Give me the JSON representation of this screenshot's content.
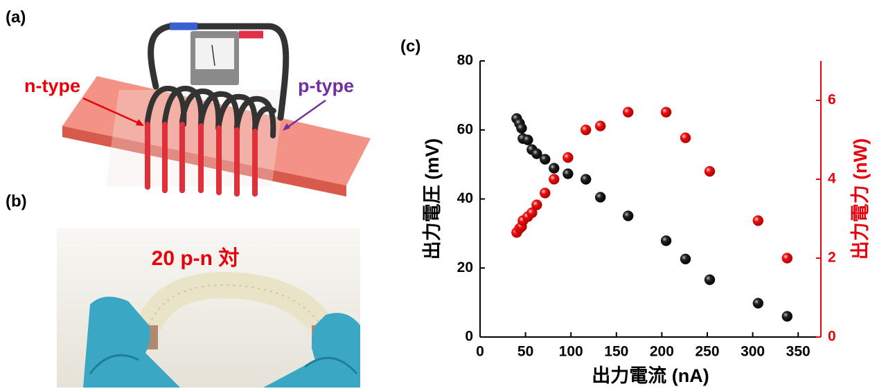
{
  "panels": {
    "a": {
      "label": "(a)",
      "n_label": "n-type",
      "p_label": "p-type"
    },
    "b": {
      "label": "(b)",
      "caption": "20 p-n 対"
    },
    "c": {
      "label": "(c)"
    }
  },
  "chart_data": {
    "type": "scatter",
    "x_label": "出力電流 (nA)",
    "y_label": "出力電圧 (mV)",
    "y2_label": "出力電力 (nW)",
    "x": [
      40.3,
      43.4,
      45.7,
      47.2,
      52.5,
      57.1,
      62.4,
      71.5,
      81.4,
      96.7,
      116.4,
      132.4,
      162.9,
      204.7,
      226,
      252.7,
      305.9,
      337.9
    ],
    "series": [
      {
        "color": "#111111",
        "axis": "y",
        "values": [
          63.3,
          61.9,
          60.5,
          57.5,
          57.1,
          54.3,
          53.1,
          51.5,
          48.9,
          47.3,
          45.7,
          40.5,
          35.1,
          27.9,
          22.6,
          16.6,
          9.8,
          6.0
        ]
      },
      {
        "color": "#e8000b",
        "axis": "y2",
        "values": [
          2.65,
          2.75,
          2.8,
          2.95,
          3.05,
          3.15,
          3.35,
          3.65,
          4.0,
          4.55,
          5.25,
          5.35,
          5.7,
          5.7,
          5.05,
          4.2,
          2.95,
          2.0
        ]
      }
    ],
    "xlim": [
      0,
      375
    ],
    "xticks": [
      0,
      50,
      100,
      150,
      200,
      250,
      300,
      350
    ],
    "ylim": [
      0,
      80
    ],
    "yticks": [
      0,
      20,
      40,
      60,
      80
    ],
    "y2lim": [
      0,
      7
    ],
    "y2ticks": [
      0,
      2,
      4,
      6
    ],
    "y2_color": "#e8000b"
  }
}
